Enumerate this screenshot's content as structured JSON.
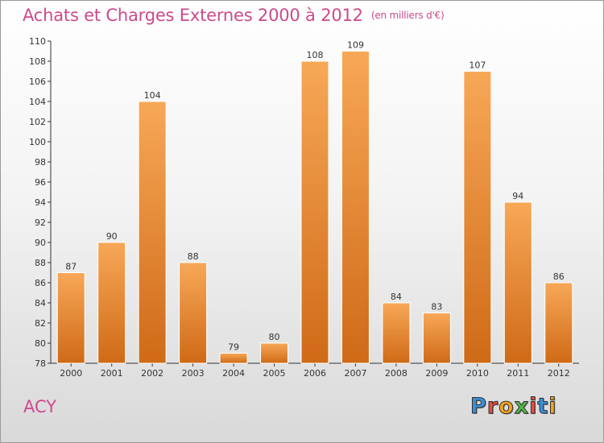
{
  "header": {
    "title": "Achats et Charges Externes 2000 à 2012",
    "subtitle": "(en milliers d'€)"
  },
  "footer": {
    "commune": "ACY",
    "logo_text": "Proxiti",
    "logo_colors": [
      "#3a8fd6",
      "#e84c3d",
      "#f2a51a",
      "#52b848",
      "#e84c3d",
      "#3a8fd6",
      "#f2a51a"
    ]
  },
  "chart_data": {
    "type": "bar",
    "categories": [
      "2000",
      "2001",
      "2002",
      "2003",
      "2004",
      "2005",
      "2006",
      "2007",
      "2008",
      "2009",
      "2010",
      "2011",
      "2012"
    ],
    "values": [
      87,
      90,
      104,
      88,
      79,
      80,
      108,
      109,
      84,
      83,
      107,
      94,
      86
    ],
    "title": "Achats et Charges Externes 2000 à 2012",
    "unit": "(en milliers d'€)",
    "ylim": [
      78,
      110
    ],
    "yticks": [
      78,
      80,
      82,
      84,
      86,
      88,
      90,
      92,
      94,
      96,
      98,
      100,
      102,
      104,
      106,
      108,
      110
    ],
    "grid": false,
    "data_labels": true,
    "colors": {
      "bar_top": "#f7a857",
      "bar_bottom": "#cf6a17",
      "axis": "#333333",
      "text": "#333333"
    }
  }
}
